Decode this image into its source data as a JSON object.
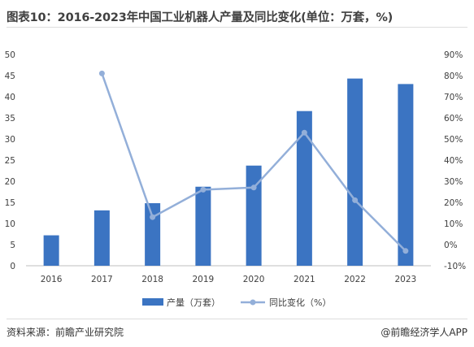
{
  "header": {
    "title": "图表10：2016-2023年中国工业机器人产量及同比变化(单位：万套，%)"
  },
  "footer": {
    "source": "资料来源：前瞻产业研究院",
    "credit": "@前瞻经济学人APP"
  },
  "colors": {
    "bar": "#3b74c2",
    "line": "#93afd9",
    "axis_text": "#404040"
  },
  "chart_data": {
    "type": "bar",
    "categories": [
      "2016",
      "2017",
      "2018",
      "2019",
      "2020",
      "2021",
      "2022",
      "2023"
    ],
    "series": [
      {
        "name": "产量（万套）",
        "type": "bar",
        "axis": "left",
        "values": [
          7.2,
          13.1,
          14.8,
          18.7,
          23.7,
          36.6,
          44.3,
          43.0
        ]
      },
      {
        "name": "同比变化（%）",
        "type": "line",
        "axis": "right",
        "values": [
          null,
          81,
          13,
          26,
          27,
          53,
          21,
          -3
        ]
      }
    ],
    "y_left": {
      "min": 0,
      "max": 50,
      "ticks": [
        0,
        5,
        10,
        15,
        20,
        25,
        30,
        35,
        40,
        45,
        50
      ]
    },
    "y_right": {
      "min": -10,
      "max": 90,
      "ticks": [
        -10,
        0,
        10,
        20,
        30,
        40,
        50,
        60,
        70,
        80,
        90
      ],
      "tick_labels": [
        "-10%",
        "0%",
        "10%",
        "20%",
        "30%",
        "40%",
        "50%",
        "60%",
        "70%",
        "80%",
        "90%"
      ]
    },
    "grid": false,
    "legend_position": "bottom-center"
  }
}
